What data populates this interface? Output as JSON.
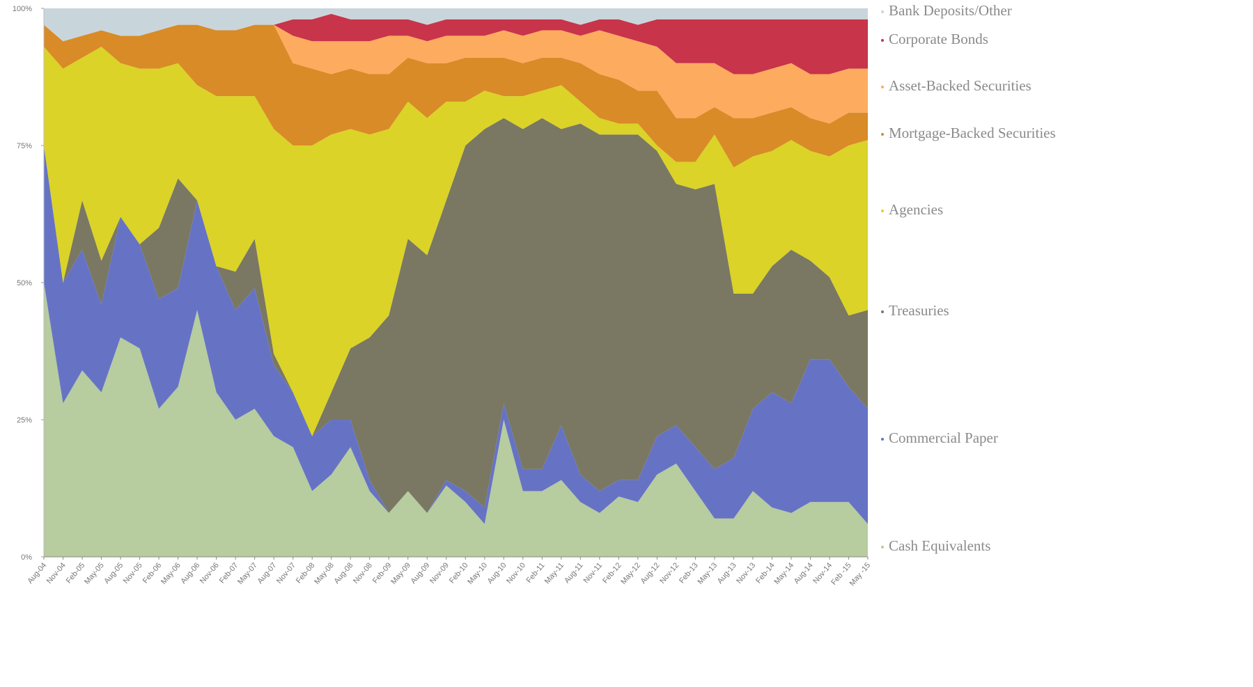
{
  "chart_data": {
    "type": "stacked_area",
    "categories": [
      "Aug-04",
      "Nov-04",
      "Feb-05",
      "May-05",
      "Aug-05",
      "Nov-05",
      "Feb-06",
      "May-06",
      "Aug-06",
      "Nov-06",
      "Feb-07",
      "May-07",
      "Aug-07",
      "Nov-07",
      "Feb-08",
      "May-08",
      "Aug-08",
      "Nov-08",
      "Feb-09",
      "May-09",
      "Aug-09",
      "Nov-09",
      "Feb-10",
      "May-10",
      "Aug-10",
      "Nov-10",
      "Feb-11",
      "May-11",
      "Aug-11",
      "Nov-11",
      "Feb-12",
      "May-12",
      "Aug-12",
      "Nov-12",
      "Feb-13",
      "May-13",
      "Aug-13",
      "Nov-13",
      "Feb-14",
      "May-14",
      "Aug-14",
      "Nov-14",
      "Feb -15",
      "May -15"
    ],
    "ylim": [
      0,
      100
    ],
    "yticks": [
      {
        "value": 0,
        "label": "0%"
      },
      {
        "value": 25,
        "label": "25%"
      },
      {
        "value": 50,
        "label": "50%"
      },
      {
        "value": 75,
        "label": "75%"
      },
      {
        "value": 100,
        "label": "100%"
      }
    ],
    "series": [
      {
        "name": "Cash Equivalents",
        "color": "#b7cc9f",
        "values": [
          50,
          28,
          34,
          30,
          40,
          38,
          27,
          31,
          45,
          30,
          25,
          27,
          22,
          20,
          12,
          15,
          20,
          12,
          8,
          12,
          8,
          13,
          10,
          6,
          25,
          12,
          12,
          14,
          10,
          8,
          11,
          10,
          15,
          17,
          12,
          7,
          7,
          12,
          9,
          8,
          10,
          10,
          10,
          6
        ]
      },
      {
        "name": "Commercial Paper",
        "color": "#6673c4",
        "values": [
          25,
          22,
          22,
          16,
          22,
          19,
          20,
          18,
          20,
          23,
          20,
          22,
          13,
          10,
          10,
          10,
          5,
          2,
          0,
          0,
          0,
          1,
          2,
          3,
          3,
          4,
          4,
          10,
          5,
          4,
          3,
          4,
          7,
          7,
          8,
          9,
          11,
          15,
          21,
          20,
          26,
          26,
          21,
          21
        ]
      },
      {
        "name": "Treasuries",
        "color": "#7a7862",
        "values": [
          0,
          0,
          9,
          8,
          0,
          0,
          13,
          20,
          0,
          0,
          7,
          9,
          2,
          0,
          0,
          5,
          13,
          26,
          36,
          46,
          47,
          51,
          63,
          69,
          52,
          62,
          64,
          54,
          64,
          65,
          63,
          63,
          52,
          44,
          47,
          52,
          30,
          21,
          23,
          28,
          18,
          15,
          13,
          18
        ]
      },
      {
        "name": "Agencies",
        "color": "#dbd327",
        "values": [
          18,
          39,
          26,
          39,
          28,
          32,
          29,
          21,
          21,
          31,
          32,
          26,
          41,
          45,
          53,
          47,
          40,
          37,
          34,
          25,
          25,
          18,
          8,
          7,
          4,
          6,
          5,
          8,
          4,
          3,
          2,
          2,
          1,
          4,
          5,
          9,
          23,
          25,
          21,
          20,
          20,
          22,
          31,
          31
        ]
      },
      {
        "name": "Mortgage-Backed Securities",
        "color": "#d98b27",
        "values": [
          4,
          5,
          4,
          3,
          5,
          6,
          7,
          7,
          11,
          12,
          12,
          13,
          19,
          15,
          14,
          11,
          11,
          11,
          10,
          8,
          10,
          7,
          8,
          6,
          7,
          6,
          6,
          5,
          7,
          8,
          8,
          6,
          10,
          8,
          8,
          5,
          9,
          7,
          7,
          6,
          6,
          6,
          6,
          5
        ]
      },
      {
        "name": "Asset-Backed Securities",
        "color": "#fdab5e",
        "values": [
          0,
          0,
          0,
          0,
          0,
          0,
          0,
          0,
          0,
          0,
          0,
          0,
          0,
          5,
          5,
          6,
          5,
          6,
          7,
          4,
          4,
          5,
          4,
          4,
          5,
          5,
          5,
          5,
          5,
          8,
          8,
          9,
          8,
          10,
          10,
          8,
          8,
          8,
          8,
          8,
          8,
          9,
          8,
          8
        ]
      },
      {
        "name": "Corporate Bonds",
        "color": "#c8344a",
        "values": [
          0,
          0,
          0,
          0,
          0,
          0,
          0,
          0,
          0,
          0,
          0,
          0,
          0,
          3,
          4,
          5,
          4,
          4,
          3,
          3,
          3,
          3,
          3,
          3,
          2,
          3,
          2,
          2,
          2,
          2,
          3,
          3,
          5,
          8,
          8,
          8,
          10,
          10,
          9,
          8,
          10,
          10,
          9,
          9
        ]
      },
      {
        "name": "Bank Deposits/Other",
        "color": "#c8d6dc",
        "values": [
          3,
          6,
          5,
          4,
          5,
          5,
          4,
          3,
          3,
          4,
          4,
          3,
          3,
          2,
          2,
          1,
          2,
          2,
          2,
          2,
          3,
          2,
          2,
          2,
          2,
          2,
          2,
          2,
          3,
          2,
          2,
          3,
          2,
          2,
          2,
          2,
          2,
          2,
          2,
          2,
          2,
          2,
          2,
          2
        ]
      }
    ]
  }
}
